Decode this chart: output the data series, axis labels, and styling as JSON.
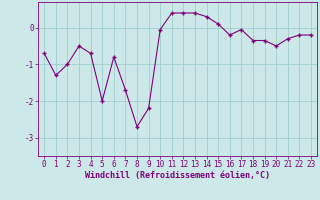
{
  "xlabel": "Windchill (Refroidissement éolien,°C)",
  "x": [
    0,
    1,
    2,
    3,
    4,
    5,
    6,
    7,
    8,
    9,
    10,
    11,
    12,
    13,
    14,
    15,
    16,
    17,
    18,
    19,
    20,
    21,
    22,
    23
  ],
  "y": [
    -0.7,
    -1.3,
    -1.0,
    -0.5,
    -0.7,
    -2.0,
    -0.8,
    -1.7,
    -2.7,
    -2.2,
    -0.05,
    0.4,
    0.4,
    0.4,
    0.3,
    0.1,
    -0.2,
    -0.05,
    -0.35,
    -0.35,
    -0.5,
    -0.3,
    -0.2,
    -0.2
  ],
  "line_color": "#800080",
  "marker": "+",
  "background_color": "#cce8e8",
  "grid_color": "#9fcece",
  "ylim": [
    -3.5,
    0.7
  ],
  "xlim": [
    -0.5,
    23.5
  ],
  "yticks": [
    -3,
    -2,
    -1,
    0
  ],
  "xticks": [
    0,
    1,
    2,
    3,
    4,
    5,
    6,
    7,
    8,
    9,
    10,
    11,
    12,
    13,
    14,
    15,
    16,
    17,
    18,
    19,
    20,
    21,
    22,
    23
  ],
  "tick_fontsize": 5.5,
  "xlabel_fontsize": 6.0
}
